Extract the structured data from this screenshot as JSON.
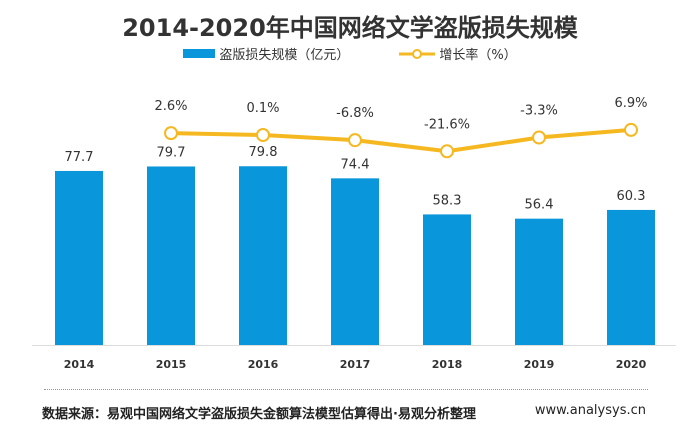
{
  "chart_data": {
    "type": "bar+line",
    "title": "2014-2020年中国网络文学盗版损失规模",
    "categories": [
      "2014",
      "2015",
      "2016",
      "2017",
      "2018",
      "2019",
      "2020"
    ],
    "series": [
      {
        "name": "盗版损失规模（亿元）",
        "type": "bar",
        "color": "#0a96db",
        "values": [
          77.7,
          79.7,
          79.8,
          74.4,
          58.3,
          56.4,
          60.3
        ],
        "labels": [
          "77.7",
          "79.7",
          "79.8",
          "74.4",
          "58.3",
          "56.4",
          "60.3"
        ]
      },
      {
        "name": "增长率（%）",
        "type": "line",
        "color": "#f5b820",
        "values": [
          null,
          2.6,
          0.1,
          -6.8,
          -21.6,
          -3.3,
          6.9
        ],
        "labels": [
          "",
          "2.6%",
          "0.1%",
          "-6.8%",
          "-21.6%",
          "-3.3%",
          "6.9%"
        ]
      }
    ],
    "legend": "top-center",
    "grid": false
  },
  "footer": {
    "source": "数据来源：易观中国网络文学盗版损失金额算法模型估算得出·易观分析整理",
    "site": "www.analysys.cn"
  }
}
